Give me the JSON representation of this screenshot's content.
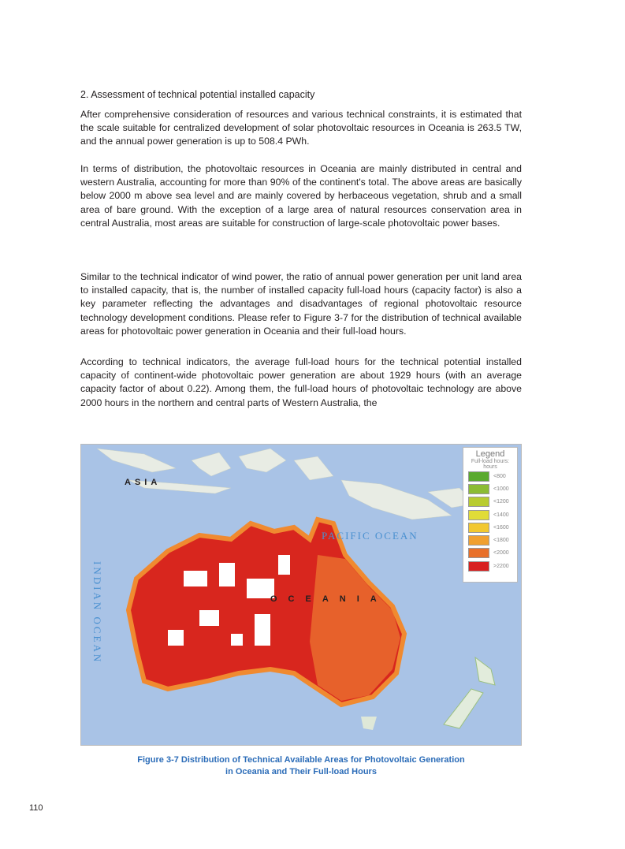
{
  "heading": "2. Assessment of technical potential installed capacity",
  "paragraphs": [
    "After comprehensive consideration of resources and various technical constraints, it is estimated that the scale suitable for centralized development of solar photovoltaic resources in Oceania is 263.5 TW, and the annual power generation is up to 508.4 PWh.",
    "In terms of distribution, the photovoltaic resources in Oceania are mainly distributed in central and western Australia, accounting for more than 90% of the continent's total. The above areas are basically below 2000 m above sea level and are mainly covered by herbaceous vegetation, shrub and a small area of bare ground. With the exception of a large area of natural resources conservation area in central Australia, most areas are suitable for construction of large-scale photovoltaic power bases.",
    "Similar to the technical indicator of wind power, the ratio of annual power generation per unit land area to installed capacity, that is, the number of installed capacity full-load hours (capacity factor) is also a key parameter reflecting the advantages and disadvantages of regional photovoltaic resource technology development conditions. Please refer to Figure 3-7 for the distribution of technical available areas for photovoltaic power generation in Oceania and their full-load hours.",
    "According to technical indicators, the average full-load hours for the technical potential installed capacity of continent-wide photovoltaic power generation are about 1929 hours (with an average capacity factor of about 0.22). Among them, the full-load hours of photovoltaic technology are above 2000 hours in the northern and central parts of Western Australia, the"
  ],
  "map": {
    "labels": {
      "asia": "ASIA",
      "pacific": "PACIFIC OCEAN",
      "oceania": "OCEANIA",
      "indian": "INDIAN OCEAN"
    },
    "colors": {
      "ocean": "#a9c3e6",
      "land": "#e8ece4"
    },
    "legend": {
      "title": "Legend",
      "subtitle": "Full-load hours:",
      "unit": "hours",
      "items": [
        {
          "label": "<800",
          "color": "#5aaa2e"
        },
        {
          "label": "<1000",
          "color": "#8cbc34"
        },
        {
          "label": "<1200",
          "color": "#b8cc30"
        },
        {
          "label": "<1400",
          "color": "#e0dc38"
        },
        {
          "label": "<1600",
          "color": "#f2c830"
        },
        {
          "label": "<1800",
          "color": "#f0a030"
        },
        {
          "label": "<2000",
          "color": "#e8702a"
        },
        {
          "label": ">2200",
          "color": "#d82020"
        }
      ]
    }
  },
  "caption": {
    "line1": "Figure 3-7   Distribution of Technical Available Areas for Photovoltaic Generation",
    "line2": "in Oceania and Their Full-load Hours"
  },
  "page_number": "110"
}
